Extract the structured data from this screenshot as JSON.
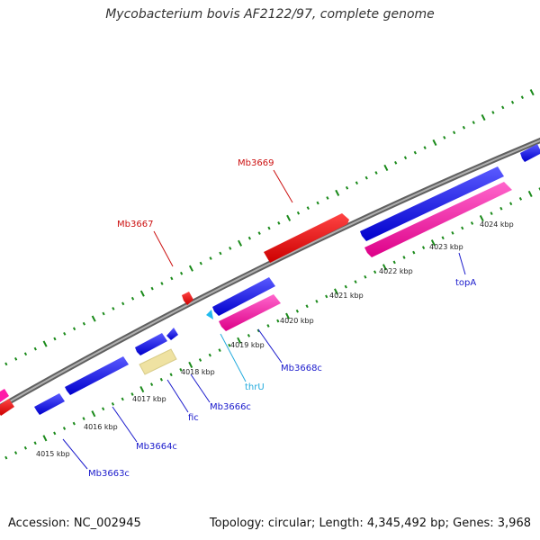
{
  "title": "Mycobacterium bovis AF2122/97, complete genome",
  "footer": {
    "accession": "Accession: NC_002945",
    "stats": "Topology: circular; Length: 4,345,492 bp; Genes: 3,968"
  },
  "colors": {
    "backbone": "#808080",
    "tick": "#1a8a1a",
    "gene_blue": "#1a1aee",
    "gene_pink": "#ff1aa8",
    "gene_red": "#ee1111",
    "gene_yellow": "#f0e4a0",
    "gene_cyan": "#22bbee",
    "label_blue": "#1a1acc",
    "label_red": "#cc1111",
    "label_cyan": "#22aadd"
  },
  "scale_labels": [
    "4015 kbp",
    "4016 kbp",
    "4017 kbp",
    "4018 kbp",
    "4019 kbp",
    "4020 kbp",
    "4021 kbp",
    "4022 kbp",
    "4023 kbp",
    "4024 kbp"
  ],
  "gene_labels": [
    {
      "text": "Mb3663c",
      "color": "blue"
    },
    {
      "text": "Mb3664c",
      "color": "blue"
    },
    {
      "text": "fic",
      "color": "blue"
    },
    {
      "text": "Mb3666c",
      "color": "blue"
    },
    {
      "text": "thrU",
      "color": "cyan"
    },
    {
      "text": "Mb3668c",
      "color": "blue"
    },
    {
      "text": "topA",
      "color": "blue"
    },
    {
      "text": "Mb3667",
      "color": "red"
    },
    {
      "text": "Mb3669",
      "color": "red"
    }
  ]
}
